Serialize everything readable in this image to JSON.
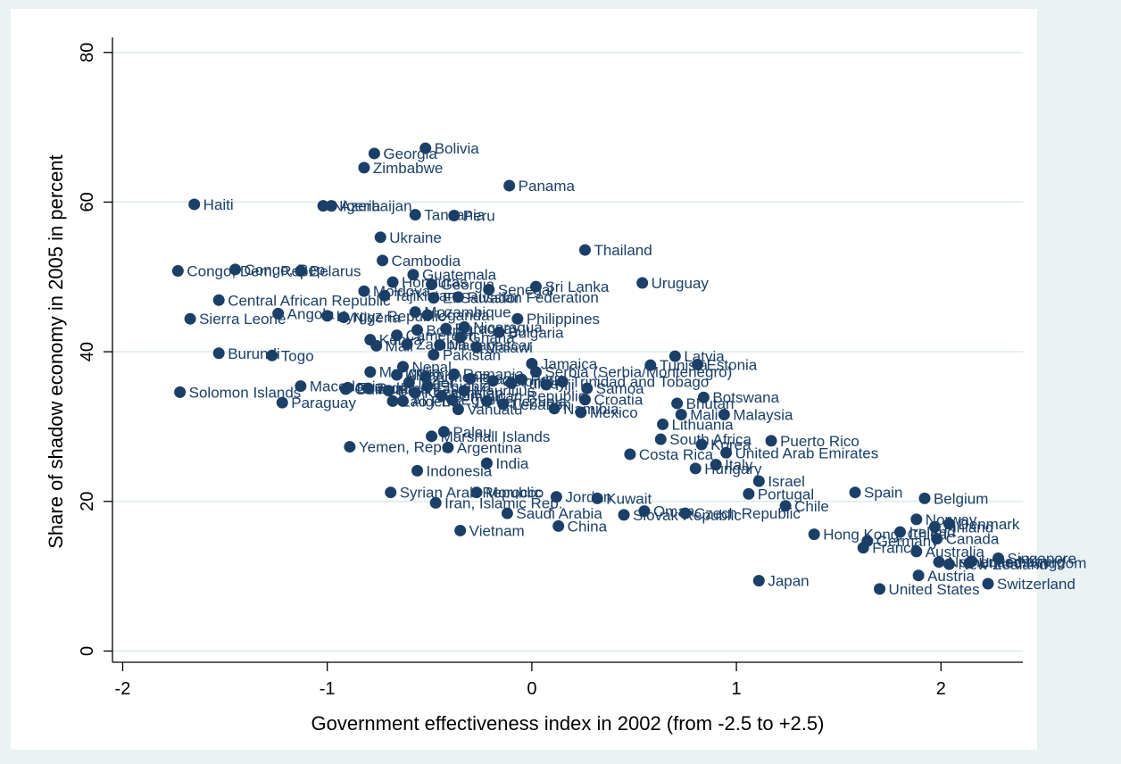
{
  "chart_data": {
    "type": "scatter",
    "xlabel": "Government effectiveness index in 2002 (from -2.5 to +2.5)",
    "ylabel": "Share of shadow economy in 2005 in percent",
    "xlim": [
      -2.05,
      2.4
    ],
    "ylim": [
      -1.5,
      82
    ],
    "xticks": [
      -2,
      -1,
      0,
      1,
      2
    ],
    "yticks": [
      0,
      20,
      40,
      60,
      80
    ],
    "grid": "horizontal",
    "marker_color": "#1b3f67",
    "background_color": "#eaf2f3",
    "plot_background": "#ffffff",
    "points": [
      {
        "label": "Bolivia",
        "x": -0.52,
        "y": 67.2
      },
      {
        "label": "Georgia",
        "x": -0.77,
        "y": 66.5
      },
      {
        "label": "Zimbabwe",
        "x": -0.82,
        "y": 64.6
      },
      {
        "label": "Panama",
        "x": -0.11,
        "y": 62.2
      },
      {
        "label": "Haiti",
        "x": -1.65,
        "y": 59.7
      },
      {
        "label": "Nigeria",
        "x": -1.02,
        "y": 59.5
      },
      {
        "label": "Azerbaijan",
        "x": -0.98,
        "y": 59.5
      },
      {
        "label": "Tanzania",
        "x": -0.57,
        "y": 58.3
      },
      {
        "label": "Peru",
        "x": -0.38,
        "y": 58.2
      },
      {
        "label": "Ukraine",
        "x": -0.74,
        "y": 55.3
      },
      {
        "label": "Thailand",
        "x": 0.26,
        "y": 53.6
      },
      {
        "label": "Cambodia",
        "x": -0.73,
        "y": 52.2
      },
      {
        "label": "Congo, Dem. Rep.",
        "x": -1.73,
        "y": 50.8
      },
      {
        "label": "Congo, Rep.",
        "x": -1.45,
        "y": 51.0
      },
      {
        "label": "Belarus",
        "x": -1.13,
        "y": 50.8
      },
      {
        "label": "Guatemala",
        "x": -0.58,
        "y": 50.3
      },
      {
        "label": "Uruguay",
        "x": 0.54,
        "y": 49.2
      },
      {
        "label": "Sri Lanka",
        "x": 0.02,
        "y": 48.7
      },
      {
        "label": "Senegal",
        "x": -0.21,
        "y": 48.3
      },
      {
        "label": "Russian Federation",
        "x": -0.36,
        "y": 47.3
      },
      {
        "label": "Honduras",
        "x": -0.68,
        "y": 49.3
      },
      {
        "label": "Moldova",
        "x": -0.82,
        "y": 48.1
      },
      {
        "label": "Central African Republic",
        "x": -1.53,
        "y": 46.9
      },
      {
        "label": "El Salvador",
        "x": -0.48,
        "y": 47.2
      },
      {
        "label": "Sierra Leone",
        "x": -1.67,
        "y": 44.4
      },
      {
        "label": "Angola",
        "x": -1.24,
        "y": 45.1
      },
      {
        "label": "Kyrgyz Republic",
        "x": -1.0,
        "y": 44.8
      },
      {
        "label": "Uganda",
        "x": -0.51,
        "y": 44.9
      },
      {
        "label": "Philippines",
        "x": -0.07,
        "y": 44.4
      },
      {
        "label": "Nigeria",
        "x": -0.92,
        "y": 44.6
      },
      {
        "label": "Paraguay",
        "x": -0.42,
        "y": 43.1
      },
      {
        "label": "Bulgaria",
        "x": -0.16,
        "y": 42.6
      },
      {
        "label": "Bosnia",
        "x": -0.56,
        "y": 42.9
      },
      {
        "label": "Ghana",
        "x": -0.35,
        "y": 41.9
      },
      {
        "label": "Madagascar",
        "x": -0.45,
        "y": 40.9
      },
      {
        "label": "Burundi",
        "x": -1.53,
        "y": 39.8
      },
      {
        "label": "Togo",
        "x": -1.27,
        "y": 39.5
      },
      {
        "label": "Pakistan",
        "x": -0.48,
        "y": 39.6
      },
      {
        "label": "Kenya",
        "x": -0.79,
        "y": 41.6
      },
      {
        "label": "Mali",
        "x": -0.76,
        "y": 40.8
      },
      {
        "label": "Latvia",
        "x": 0.7,
        "y": 39.4
      },
      {
        "label": "Tunisia",
        "x": 0.58,
        "y": 38.2
      },
      {
        "label": "Estonia",
        "x": 0.81,
        "y": 38.3
      },
      {
        "label": "Jamaica",
        "x": 0.0,
        "y": 38.4
      },
      {
        "label": "Serbia (Serbia/Montenegro)",
        "x": 0.02,
        "y": 37.3
      },
      {
        "label": "Romania",
        "x": -0.38,
        "y": 37.0
      },
      {
        "label": "Solomon Islands",
        "x": -1.72,
        "y": 34.6
      },
      {
        "label": "Macedonia",
        "x": -1.13,
        "y": 35.4
      },
      {
        "label": "Ecuador",
        "x": -0.9,
        "y": 35.2
      },
      {
        "label": "Croatia",
        "x": 0.26,
        "y": 33.6
      },
      {
        "label": "Botswana",
        "x": 0.84,
        "y": 33.9
      },
      {
        "label": "Bhutan",
        "x": 0.71,
        "y": 33.1
      },
      {
        "label": "Paraguay",
        "x": -1.22,
        "y": 33.2
      },
      {
        "label": "Lao PDR",
        "x": -0.68,
        "y": 33.4
      },
      {
        "label": "Lebanon",
        "x": -0.14,
        "y": 33.0
      },
      {
        "label": "Vanuatu",
        "x": -0.36,
        "y": 32.3
      },
      {
        "label": "Namibia",
        "x": 0.11,
        "y": 32.4
      },
      {
        "label": "Mexico",
        "x": 0.24,
        "y": 31.9
      },
      {
        "label": "Malaysia",
        "x": 0.94,
        "y": 31.6
      },
      {
        "label": "Mali",
        "x": 0.73,
        "y": 31.6
      },
      {
        "label": "Lithuania",
        "x": 0.64,
        "y": 30.3
      },
      {
        "label": "Palau",
        "x": -0.43,
        "y": 29.3
      },
      {
        "label": "Marshall Islands",
        "x": -0.49,
        "y": 28.7
      },
      {
        "label": "South Africa",
        "x": 0.63,
        "y": 28.3
      },
      {
        "label": "Puerto Rico",
        "x": 1.17,
        "y": 28.1
      },
      {
        "label": "Korea",
        "x": 0.83,
        "y": 27.6
      },
      {
        "label": "Yemen, Rep.",
        "x": -0.89,
        "y": 27.3
      },
      {
        "label": "Argentina",
        "x": -0.41,
        "y": 27.2
      },
      {
        "label": "Costa Rica",
        "x": 0.48,
        "y": 26.3
      },
      {
        "label": "United Arab Emirates",
        "x": 0.95,
        "y": 26.5
      },
      {
        "label": "India",
        "x": -0.22,
        "y": 25.1
      },
      {
        "label": "Italy",
        "x": 0.9,
        "y": 24.9
      },
      {
        "label": "Hungary",
        "x": 0.8,
        "y": 24.4
      },
      {
        "label": "Indonesia",
        "x": -0.56,
        "y": 24.1
      },
      {
        "label": "Israel",
        "x": 1.11,
        "y": 22.7
      },
      {
        "label": "Spain",
        "x": 1.58,
        "y": 21.2
      },
      {
        "label": "Portugal",
        "x": 1.06,
        "y": 21.0
      },
      {
        "label": "Syrian Arab Republic",
        "x": -0.69,
        "y": 21.2
      },
      {
        "label": "Morocco",
        "x": -0.27,
        "y": 21.2
      },
      {
        "label": "Belgium",
        "x": 1.92,
        "y": 20.4
      },
      {
        "label": "Kuwait",
        "x": 0.32,
        "y": 20.4
      },
      {
        "label": "Iran, Islamic Rep.",
        "x": -0.47,
        "y": 19.8
      },
      {
        "label": "Jordan",
        "x": 0.12,
        "y": 20.6
      },
      {
        "label": "Chile",
        "x": 1.24,
        "y": 19.4
      },
      {
        "label": "Oman",
        "x": 0.55,
        "y": 18.7
      },
      {
        "label": "Slovak Republic",
        "x": 0.45,
        "y": 18.2
      },
      {
        "label": "Czech Republic",
        "x": 0.75,
        "y": 18.4
      },
      {
        "label": "Saudi Arabia",
        "x": -0.12,
        "y": 18.4
      },
      {
        "label": "Norway",
        "x": 1.88,
        "y": 17.6
      },
      {
        "label": "Denmark",
        "x": 2.04,
        "y": 17.0
      },
      {
        "label": "Finland",
        "x": 1.97,
        "y": 16.6
      },
      {
        "label": "Vietnam",
        "x": -0.35,
        "y": 16.1
      },
      {
        "label": "China",
        "x": 0.13,
        "y": 16.7
      },
      {
        "label": "Hong Kong, China",
        "x": 1.38,
        "y": 15.6
      },
      {
        "label": "Ireland",
        "x": 1.8,
        "y": 15.9
      },
      {
        "label": "Canada",
        "x": 1.98,
        "y": 15.0
      },
      {
        "label": "Germany",
        "x": 1.64,
        "y": 14.7
      },
      {
        "label": "France",
        "x": 1.62,
        "y": 13.8
      },
      {
        "label": "Australia",
        "x": 1.88,
        "y": 13.3
      },
      {
        "label": "Singapore",
        "x": 2.28,
        "y": 12.4
      },
      {
        "label": "Luxembourg",
        "x": 2.15,
        "y": 12.0
      },
      {
        "label": "Netherlands",
        "x": 1.99,
        "y": 11.9
      },
      {
        "label": "New Zealand",
        "x": 2.04,
        "y": 11.6
      },
      {
        "label": "United Kingdom",
        "x": 2.14,
        "y": 11.8
      },
      {
        "label": "Austria",
        "x": 1.89,
        "y": 10.1
      },
      {
        "label": "Japan",
        "x": 1.11,
        "y": 9.4
      },
      {
        "label": "Switzerland",
        "x": 2.23,
        "y": 9.0
      },
      {
        "label": "United States",
        "x": 1.7,
        "y": 8.3
      },
      {
        "label": "Mongolia",
        "x": -0.79,
        "y": 37.3
      },
      {
        "label": "Nepal",
        "x": -0.63,
        "y": 38.0
      },
      {
        "label": "Albania",
        "x": -0.66,
        "y": 36.9
      },
      {
        "label": "Niger",
        "x": -0.6,
        "y": 35.9
      },
      {
        "label": "Armenia",
        "x": -0.52,
        "y": 36.7
      },
      {
        "label": "Brazil",
        "x": -0.3,
        "y": 36.4
      },
      {
        "label": "Colombia",
        "x": -0.19,
        "y": 36.1
      },
      {
        "label": "Turkey",
        "x": -0.1,
        "y": 35.8
      },
      {
        "label": "Peru",
        "x": -0.05,
        "y": 36.3
      },
      {
        "label": "Fiji",
        "x": 0.07,
        "y": 35.6
      },
      {
        "label": "Trinidad and Tobago",
        "x": 0.15,
        "y": 36.0
      },
      {
        "label": "Samoa",
        "x": 0.27,
        "y": 35.1
      },
      {
        "label": "Mauritius",
        "x": -0.33,
        "y": 34.8
      },
      {
        "label": "Kazakhstan",
        "x": -0.57,
        "y": 34.5
      },
      {
        "label": "Benin",
        "x": -0.7,
        "y": 34.8
      },
      {
        "label": "Burkina Faso",
        "x": -0.8,
        "y": 35.1
      },
      {
        "label": "Guinea",
        "x": -0.91,
        "y": 35.0
      },
      {
        "label": "Egypt",
        "x": -0.39,
        "y": 33.6
      },
      {
        "label": "Venezuela",
        "x": -0.22,
        "y": 33.4
      },
      {
        "label": "Dominican Republic",
        "x": -0.44,
        "y": 34.1
      },
      {
        "label": "Algeria",
        "x": -0.63,
        "y": 33.4
      },
      {
        "label": "Ethiopia",
        "x": -0.51,
        "y": 35.4
      },
      {
        "label": "Cameroon",
        "x": -0.66,
        "y": 42.2
      },
      {
        "label": "Zambia",
        "x": -0.61,
        "y": 41.0
      },
      {
        "label": "Malawi",
        "x": -0.27,
        "y": 40.6
      },
      {
        "label": "Nicaragua",
        "x": -0.33,
        "y": 43.3
      },
      {
        "label": "Tajikistan",
        "x": -0.72,
        "y": 47.5
      },
      {
        "label": "Mozambique",
        "x": -0.57,
        "y": 45.3
      },
      {
        "label": "Georgia",
        "x": -0.49,
        "y": 49.0
      }
    ]
  }
}
